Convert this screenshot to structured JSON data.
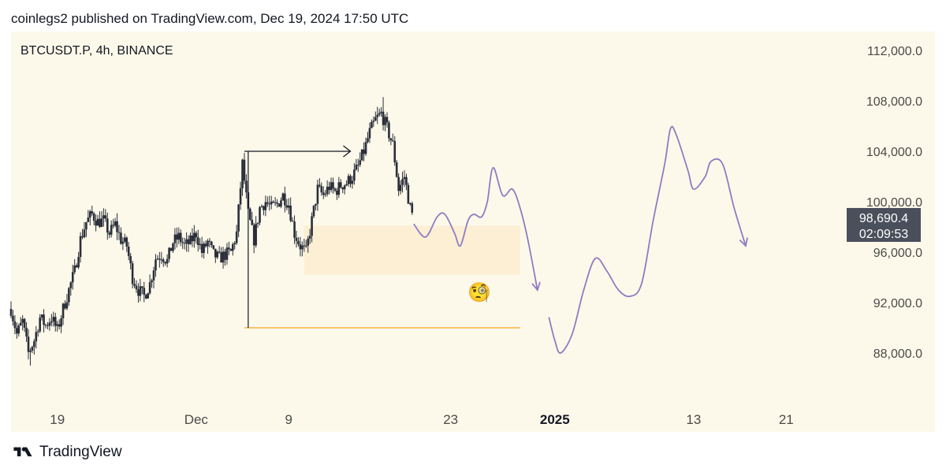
{
  "header": {
    "text": "coinlegs2 published on TradingView.com, Dec 19, 2024 17:50 UTC"
  },
  "chart_title": "BTCUSDT.P, 4h, BINANCE",
  "footer": {
    "brand": "TradingView",
    "logo_icon": "tradingview-logo-icon"
  },
  "colors": {
    "background": "#fdf9ea",
    "candle": "#2a2e39",
    "zone": "#fdefd4",
    "level": "#f5a623",
    "projection": "#8e7cc3",
    "price_tag": "#4a4f5c",
    "axis_text": "#4a4a4a"
  },
  "chart_data": {
    "type": "candlestick",
    "title": "BTCUSDT.P, 4h, BINANCE",
    "interval": "4h",
    "xlabel": "",
    "ylabel": "",
    "ylim": [
      84000,
      113500
    ],
    "xlim": [
      "2024-11-15",
      "2025-01-25"
    ],
    "x_ticks": [
      {
        "label": "19",
        "date": "2024-11-19",
        "bold": false
      },
      {
        "label": "Dec",
        "date": "2024-12-01",
        "bold": false
      },
      {
        "label": "9",
        "date": "2024-12-09",
        "bold": false
      },
      {
        "label": "23",
        "date": "2024-12-23",
        "bold": false
      },
      {
        "label": "2025",
        "date": "2025-01-01",
        "bold": true
      },
      {
        "label": "13",
        "date": "2025-01-13",
        "bold": false
      },
      {
        "label": "21",
        "date": "2025-01-21",
        "bold": false
      }
    ],
    "y_ticks": [
      88000,
      92000,
      96000,
      100000,
      104000,
      108000,
      112000
    ],
    "y_tick_labels": [
      "88,000.0",
      "92,000.0",
      "96,000.0",
      "100,000.0",
      "104,000.0",
      "108,000.0",
      "112,000.0"
    ],
    "last_price": 98690.4,
    "last_price_label": "98,690.4",
    "countdown": "02:09:53",
    "price_path": [
      [
        "2024-11-15 00:00",
        91500
      ],
      [
        "2024-11-15 12:00",
        89500
      ],
      [
        "2024-11-16 00:00",
        90500
      ],
      [
        "2024-11-16 12:00",
        88000
      ],
      [
        "2024-11-17 00:00",
        89000
      ],
      [
        "2024-11-17 12:00",
        90800
      ],
      [
        "2024-11-18 00:00",
        90200
      ],
      [
        "2024-11-18 12:00",
        90800
      ],
      [
        "2024-11-19 00:00",
        89800
      ],
      [
        "2024-11-19 12:00",
        91500
      ],
      [
        "2024-11-20 00:00",
        93000
      ],
      [
        "2024-11-20 12:00",
        94500
      ],
      [
        "2024-11-21 00:00",
        97000
      ],
      [
        "2024-11-21 12:00",
        98400
      ],
      [
        "2024-11-22 00:00",
        99000
      ],
      [
        "2024-11-22 12:00",
        98400
      ],
      [
        "2024-11-23 00:00",
        98500
      ],
      [
        "2024-11-23 12:00",
        97500
      ],
      [
        "2024-11-24 00:00",
        98200
      ],
      [
        "2024-11-24 12:00",
        97000
      ],
      [
        "2024-11-25 00:00",
        96500
      ],
      [
        "2024-11-25 12:00",
        94000
      ],
      [
        "2024-11-26 00:00",
        93000
      ],
      [
        "2024-11-26 12:00",
        92500
      ],
      [
        "2024-11-27 00:00",
        93500
      ],
      [
        "2024-11-27 12:00",
        95500
      ],
      [
        "2024-11-28 00:00",
        95800
      ],
      [
        "2024-11-28 12:00",
        95300
      ],
      [
        "2024-11-29 00:00",
        96800
      ],
      [
        "2024-11-29 12:00",
        97200
      ],
      [
        "2024-11-30 00:00",
        96500
      ],
      [
        "2024-11-30 12:00",
        96800
      ],
      [
        "2024-12-01 00:00",
        97500
      ],
      [
        "2024-12-01 12:00",
        96000
      ],
      [
        "2024-12-02 00:00",
        96800
      ],
      [
        "2024-12-02 12:00",
        95800
      ],
      [
        "2024-12-03 00:00",
        95500
      ],
      [
        "2024-12-03 12:00",
        95800
      ],
      [
        "2024-12-04 00:00",
        96000
      ],
      [
        "2024-12-04 12:00",
        97500
      ],
      [
        "2024-12-05 00:00",
        103000
      ],
      [
        "2024-12-05 12:00",
        99000
      ],
      [
        "2024-12-06 00:00",
        97000
      ],
      [
        "2024-12-06 12:00",
        99500
      ],
      [
        "2024-12-07 00:00",
        100000
      ],
      [
        "2024-12-07 12:00",
        99500
      ],
      [
        "2024-12-08 00:00",
        99800
      ],
      [
        "2024-12-08 12:00",
        100500
      ],
      [
        "2024-12-09 00:00",
        99800
      ],
      [
        "2024-12-09 12:00",
        97500
      ],
      [
        "2024-12-10 00:00",
        96500
      ],
      [
        "2024-12-10 12:00",
        96000
      ],
      [
        "2024-12-11 00:00",
        98500
      ],
      [
        "2024-12-11 12:00",
        101000
      ],
      [
        "2024-12-12 00:00",
        100500
      ],
      [
        "2024-12-12 12:00",
        101200
      ],
      [
        "2024-12-13 00:00",
        100800
      ],
      [
        "2024-12-13 12:00",
        101300
      ],
      [
        "2024-12-14 00:00",
        101500
      ],
      [
        "2024-12-14 12:00",
        102000
      ],
      [
        "2024-12-15 00:00",
        102800
      ],
      [
        "2024-12-15 12:00",
        104000
      ],
      [
        "2024-12-16 00:00",
        105500
      ],
      [
        "2024-12-16 12:00",
        106500
      ],
      [
        "2024-12-17 00:00",
        107000
      ],
      [
        "2024-12-17 12:00",
        105800
      ],
      [
        "2024-12-18 00:00",
        104500
      ],
      [
        "2024-12-18 12:00",
        101000
      ],
      [
        "2024-12-19 00:00",
        102000
      ],
      [
        "2024-12-19 12:00",
        99500
      ],
      [
        "2024-12-19 17:50",
        98690
      ]
    ],
    "price_high": [
      "2024-12-17 04:00",
      108300
    ],
    "price_low": [
      "2024-11-16 16:00",
      87000
    ],
    "annotations": {
      "range_arrow": {
        "from": [
          "2024-12-05 04:00",
          104000
        ],
        "to": [
          "2024-12-14 08:00",
          104000
        ]
      },
      "vertical_line": {
        "date": "2024-12-05 12:00",
        "from": 90000,
        "to": 104000
      },
      "support_level": {
        "price": 90000,
        "from": "2024-12-05 04:00",
        "to": "2024-12-29 00:00"
      },
      "demand_zone": {
        "from": "2024-12-10 08:00",
        "to": "2024-12-29 00:00",
        "low": 94200,
        "high": 98100
      },
      "emoji": {
        "date": "2024-12-25 12:00",
        "price": 92300,
        "symbol": "🧐"
      },
      "projection_1": [
        [
          "2024-12-19 20:00",
          98200
        ],
        [
          "2024-12-20 20:00",
          97200
        ],
        [
          "2024-12-21 20:00",
          98800
        ],
        [
          "2024-12-22 12:00",
          99000
        ],
        [
          "2024-12-23 08:00",
          97500
        ],
        [
          "2024-12-23 20:00",
          96500
        ],
        [
          "2024-12-24 12:00",
          98500
        ],
        [
          "2024-12-25 00:00",
          99000
        ],
        [
          "2024-12-25 16:00",
          98800
        ],
        [
          "2024-12-26 04:00",
          100000
        ],
        [
          "2024-12-26 16:00",
          102700
        ],
        [
          "2024-12-27 12:00",
          100500
        ],
        [
          "2024-12-28 08:00",
          101000
        ],
        [
          "2024-12-29 00:00",
          99500
        ],
        [
          "2024-12-29 16:00",
          97000
        ],
        [
          "2024-12-30 12:00",
          93000
        ]
      ],
      "projection_2": [
        [
          "2024-12-31 12:00",
          90800
        ],
        [
          "2025-01-01 00:00",
          89000
        ],
        [
          "2025-01-01 12:00",
          88000
        ],
        [
          "2025-01-02 12:00",
          89500
        ],
        [
          "2025-01-03 12:00",
          93000
        ],
        [
          "2025-01-04 12:00",
          95500
        ],
        [
          "2025-01-05 12:00",
          94500
        ],
        [
          "2025-01-06 12:00",
          93000
        ],
        [
          "2025-01-07 12:00",
          92500
        ],
        [
          "2025-01-08 12:00",
          93500
        ],
        [
          "2025-01-09 12:00",
          98500
        ],
        [
          "2025-01-10 12:00",
          103000
        ],
        [
          "2025-01-11 00:00",
          105800
        ],
        [
          "2025-01-11 12:00",
          105300
        ],
        [
          "2025-01-12 12:00",
          102500
        ],
        [
          "2025-01-13 00:00",
          101000
        ],
        [
          "2025-01-14 00:00",
          102000
        ],
        [
          "2025-01-14 12:00",
          103200
        ],
        [
          "2025-01-15 12:00",
          103000
        ],
        [
          "2025-01-16 12:00",
          99500
        ],
        [
          "2025-01-17 12:00",
          96500
        ]
      ]
    }
  }
}
